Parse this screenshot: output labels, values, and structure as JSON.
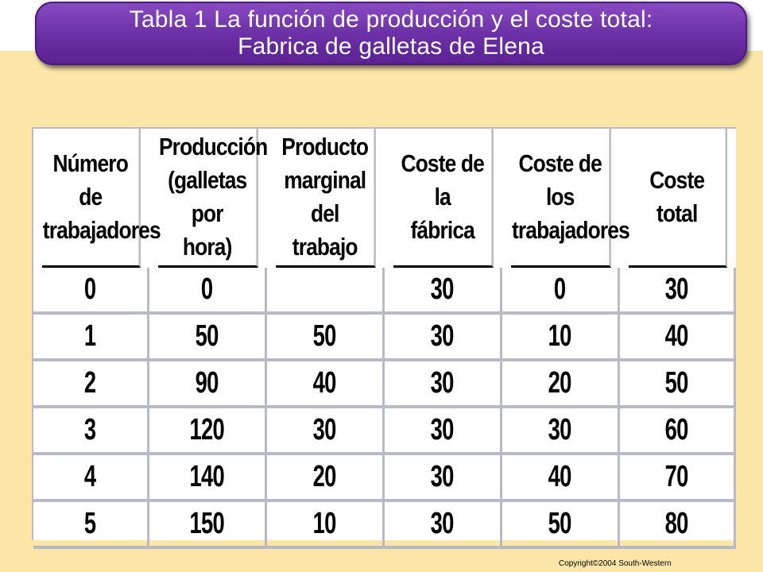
{
  "title": {
    "line1": "Tabla 1 La función de producción y el coste total:",
    "line2": "Fabrica de galletas de Elena"
  },
  "table": {
    "headers": [
      [
        "Número de",
        "trabajadores"
      ],
      [
        "Producción",
        "(galletas por",
        "hora)"
      ],
      [
        "Producto",
        "marginal del",
        "trabajo"
      ],
      [
        "Coste de la",
        "fábrica"
      ],
      [
        "Coste de los",
        "trabajadores"
      ],
      [
        "Coste total"
      ]
    ],
    "rows": [
      [
        "0",
        "0",
        "",
        "30",
        "0",
        "30"
      ],
      [
        "1",
        "50",
        "50",
        "30",
        "10",
        "40"
      ],
      [
        "2",
        "90",
        "40",
        "30",
        "20",
        "50"
      ],
      [
        "3",
        "120",
        "30",
        "30",
        "30",
        "60"
      ],
      [
        "4",
        "140",
        "20",
        "30",
        "40",
        "70"
      ],
      [
        "5",
        "150",
        "10",
        "30",
        "50",
        "80"
      ]
    ]
  },
  "footer": {
    "copyright": "Copyright©2004  South-Western"
  },
  "colors": {
    "title_bar": "#6a2fa4",
    "background": "#fbe6a8",
    "grid_lines": "#b9b9c8"
  }
}
